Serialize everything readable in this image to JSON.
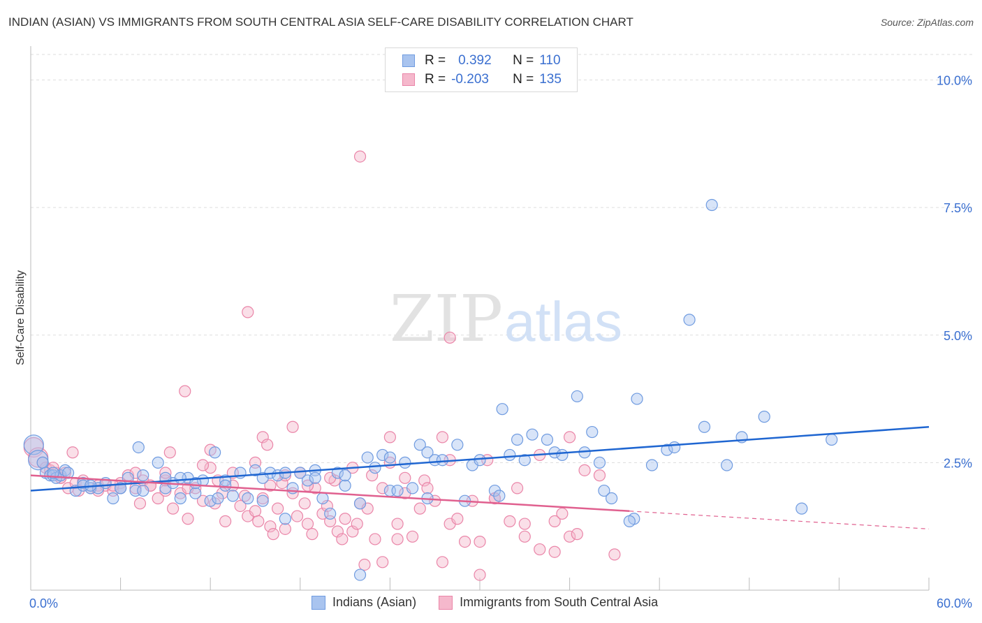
{
  "title": "INDIAN (ASIAN) VS IMMIGRANTS FROM SOUTH CENTRAL ASIA SELF-CARE DISABILITY CORRELATION CHART",
  "source": "Source: ZipAtlas.com",
  "watermark": {
    "zip": "ZIP",
    "atlas": "atlas"
  },
  "colors": {
    "blue_fill": "#a9c4ef",
    "blue_stroke": "#6f9be0",
    "blue_line": "#1f66d1",
    "pink_fill": "#f5b8cc",
    "pink_stroke": "#ea85a8",
    "pink_line": "#e0608f",
    "axis_text": "#3a6fd0",
    "grid": "#dddddd"
  },
  "legend": {
    "rows": [
      {
        "r_label": "R =",
        "r_value": "0.392",
        "n_label": "N =",
        "n_value": "110"
      },
      {
        "r_label": "R =",
        "r_value": "-0.203",
        "n_label": "N =",
        "n_value": "135"
      }
    ]
  },
  "bottom_legend": {
    "series1": "Indians (Asian)",
    "series2": "Immigrants from South Central Asia"
  },
  "chart_data": {
    "type": "scatter",
    "title": "INDIAN (ASIAN) VS IMMIGRANTS FROM SOUTH CENTRAL ASIA SELF-CARE DISABILITY CORRELATION CHART",
    "xlabel": "",
    "ylabel": "Self-Care Disability",
    "xlim": [
      0,
      60
    ],
    "ylim": [
      0,
      10.5
    ],
    "x_tick_labels": [
      "0.0%",
      "60.0%"
    ],
    "y_ticks": [
      2.5,
      5.0,
      7.5,
      10.0
    ],
    "y_tick_labels": [
      "2.5%",
      "5.0%",
      "7.5%",
      "10.0%"
    ],
    "series": [
      {
        "name": "Indians (Asian)",
        "r": 0.392,
        "n": 110,
        "trend": {
          "x0": 0,
          "y0": 1.95,
          "x1": 60,
          "y1": 3.2
        },
        "points": [
          [
            0.2,
            2.85
          ],
          [
            0.5,
            2.55
          ],
          [
            0.8,
            2.5
          ],
          [
            1.0,
            2.3
          ],
          [
            1.3,
            2.25
          ],
          [
            1.5,
            2.25
          ],
          [
            1.7,
            2.2
          ],
          [
            2.0,
            2.25
          ],
          [
            2.3,
            2.35
          ],
          [
            2.5,
            2.3
          ],
          [
            3.0,
            1.95
          ],
          [
            3.5,
            2.1
          ],
          [
            4.0,
            2.0
          ],
          [
            4.5,
            2.0
          ],
          [
            5.0,
            2.1
          ],
          [
            5.5,
            1.8
          ],
          [
            6.0,
            2.0
          ],
          [
            6.5,
            2.2
          ],
          [
            7.0,
            1.95
          ],
          [
            7.5,
            2.25
          ],
          [
            7.2,
            2.8
          ],
          [
            8.5,
            2.5
          ],
          [
            9.0,
            2.0
          ],
          [
            9.5,
            2.1
          ],
          [
            10.0,
            1.8
          ],
          [
            10.5,
            2.2
          ],
          [
            11.0,
            1.9
          ],
          [
            11.5,
            2.15
          ],
          [
            12.0,
            1.75
          ],
          [
            12.5,
            1.8
          ],
          [
            12.3,
            2.7
          ],
          [
            13.0,
            2.15
          ],
          [
            13.5,
            1.85
          ],
          [
            14.0,
            2.3
          ],
          [
            14.5,
            1.8
          ],
          [
            15.0,
            2.35
          ],
          [
            15.5,
            1.75
          ],
          [
            16.0,
            2.3
          ],
          [
            16.5,
            2.25
          ],
          [
            17.0,
            2.3
          ],
          [
            17.5,
            2.0
          ],
          [
            18.0,
            2.3
          ],
          [
            18.5,
            2.15
          ],
          [
            19.0,
            2.35
          ],
          [
            19.5,
            1.8
          ],
          [
            20.0,
            1.5
          ],
          [
            20.5,
            2.3
          ],
          [
            21.0,
            2.05
          ],
          [
            22.0,
            1.7
          ],
          [
            22.5,
            2.6
          ],
          [
            23.0,
            2.4
          ],
          [
            23.5,
            2.65
          ],
          [
            24.0,
            1.95
          ],
          [
            24.5,
            1.95
          ],
          [
            25.0,
            2.5
          ],
          [
            25.5,
            2.0
          ],
          [
            26.0,
            2.85
          ],
          [
            26.5,
            2.7
          ],
          [
            27.0,
            2.55
          ],
          [
            27.5,
            2.55
          ],
          [
            28.5,
            2.85
          ],
          [
            29.0,
            1.75
          ],
          [
            29.5,
            2.45
          ],
          [
            30.0,
            2.55
          ],
          [
            31.0,
            1.95
          ],
          [
            31.3,
            1.85
          ],
          [
            32.0,
            2.65
          ],
          [
            32.5,
            2.95
          ],
          [
            33.0,
            2.55
          ],
          [
            34.5,
            2.95
          ],
          [
            35.0,
            2.7
          ],
          [
            35.5,
            2.65
          ],
          [
            36.5,
            3.8
          ],
          [
            37.0,
            2.7
          ],
          [
            37.5,
            3.1
          ],
          [
            38.0,
            2.5
          ],
          [
            38.3,
            1.95
          ],
          [
            38.8,
            1.8
          ],
          [
            40.5,
            3.75
          ],
          [
            41.5,
            2.45
          ],
          [
            42.5,
            2.75
          ],
          [
            43.0,
            2.8
          ],
          [
            45.0,
            3.2
          ],
          [
            46.5,
            2.45
          ],
          [
            47.5,
            3.0
          ],
          [
            49.0,
            3.4
          ],
          [
            51.5,
            1.6
          ],
          [
            53.5,
            2.95
          ],
          [
            7.5,
            1.95
          ],
          [
            3.5,
            2.05
          ],
          [
            26.5,
            1.8
          ],
          [
            17.0,
            1.4
          ],
          [
            22.0,
            0.3
          ],
          [
            40.3,
            1.4
          ],
          [
            44.0,
            5.3
          ],
          [
            45.5,
            7.55
          ],
          [
            21.0,
            2.25
          ],
          [
            19.0,
            2.2
          ],
          [
            10.0,
            2.2
          ],
          [
            6.0,
            2.0
          ],
          [
            4.0,
            2.05
          ],
          [
            1.5,
            2.3
          ],
          [
            9.0,
            2.2
          ],
          [
            11.0,
            2.1
          ],
          [
            13.0,
            2.05
          ],
          [
            15.5,
            2.2
          ],
          [
            24.0,
            2.6
          ],
          [
            31.5,
            3.55
          ],
          [
            33.5,
            3.05
          ],
          [
            40.0,
            1.35
          ]
        ]
      },
      {
        "name": "Immigrants from South Central Asia",
        "r": -0.203,
        "n": 135,
        "trend": {
          "x0": 0,
          "y0": 2.25,
          "x1": 40,
          "y1": 1.55
        },
        "trend_dashed": {
          "x0": 40,
          "y0": 1.55,
          "x1": 60,
          "y1": 1.2
        },
        "points": [
          [
            0.2,
            2.8
          ],
          [
            0.5,
            2.6
          ],
          [
            0.8,
            2.5
          ],
          [
            1.0,
            2.4
          ],
          [
            1.3,
            2.35
          ],
          [
            1.7,
            2.3
          ],
          [
            2.0,
            2.2
          ],
          [
            2.3,
            2.3
          ],
          [
            2.5,
            2.0
          ],
          [
            2.8,
            2.7
          ],
          [
            3.0,
            2.1
          ],
          [
            3.5,
            2.15
          ],
          [
            4.0,
            2.0
          ],
          [
            4.5,
            2.05
          ],
          [
            5.0,
            2.05
          ],
          [
            5.5,
            1.95
          ],
          [
            6.0,
            2.1
          ],
          [
            6.5,
            2.25
          ],
          [
            7.0,
            2.0
          ],
          [
            7.3,
            1.7
          ],
          [
            7.5,
            2.15
          ],
          [
            8.0,
            2.05
          ],
          [
            8.5,
            1.8
          ],
          [
            9.0,
            2.15
          ],
          [
            9.3,
            2.7
          ],
          [
            9.5,
            1.6
          ],
          [
            10.0,
            1.9
          ],
          [
            10.3,
            3.9
          ],
          [
            10.5,
            1.4
          ],
          [
            11.0,
            2.0
          ],
          [
            11.5,
            1.75
          ],
          [
            12.0,
            2.4
          ],
          [
            12.3,
            1.7
          ],
          [
            12.8,
            1.9
          ],
          [
            13.0,
            1.35
          ],
          [
            13.5,
            2.05
          ],
          [
            14.0,
            1.65
          ],
          [
            14.3,
            1.85
          ],
          [
            14.5,
            1.45
          ],
          [
            15.0,
            1.55
          ],
          [
            15.2,
            1.35
          ],
          [
            15.5,
            1.8
          ],
          [
            16.0,
            1.25
          ],
          [
            16.2,
            1.1
          ],
          [
            16.5,
            1.6
          ],
          [
            16.8,
            2.1
          ],
          [
            17.0,
            1.2
          ],
          [
            17.5,
            1.9
          ],
          [
            17.8,
            1.45
          ],
          [
            18.0,
            2.3
          ],
          [
            18.3,
            1.7
          ],
          [
            18.5,
            1.3
          ],
          [
            18.8,
            1.1
          ],
          [
            19.0,
            2.0
          ],
          [
            19.5,
            1.5
          ],
          [
            19.8,
            1.65
          ],
          [
            20.0,
            1.35
          ],
          [
            20.3,
            2.15
          ],
          [
            20.5,
            1.15
          ],
          [
            20.8,
            1.0
          ],
          [
            21.0,
            1.4
          ],
          [
            21.5,
            1.15
          ],
          [
            21.8,
            1.3
          ],
          [
            22.0,
            1.7
          ],
          [
            22.3,
            0.5
          ],
          [
            22.5,
            1.6
          ],
          [
            22.8,
            2.25
          ],
          [
            23.0,
            1.0
          ],
          [
            23.5,
            0.55
          ],
          [
            24.0,
            2.5
          ],
          [
            24.5,
            1.3
          ],
          [
            25.0,
            1.9
          ],
          [
            25.5,
            1.05
          ],
          [
            26.0,
            1.6
          ],
          [
            26.3,
            2.15
          ],
          [
            27.0,
            1.75
          ],
          [
            27.5,
            0.55
          ],
          [
            28.0,
            1.3
          ],
          [
            28.5,
            1.4
          ],
          [
            29.0,
            0.95
          ],
          [
            29.5,
            1.75
          ],
          [
            30.0,
            0.95
          ],
          [
            31.0,
            1.8
          ],
          [
            32.0,
            1.35
          ],
          [
            33.0,
            1.05
          ],
          [
            34.0,
            0.8
          ],
          [
            35.0,
            1.35
          ],
          [
            35.5,
            1.5
          ],
          [
            36.0,
            1.05
          ],
          [
            36.5,
            1.1
          ],
          [
            37.0,
            2.35
          ],
          [
            38.0,
            2.25
          ],
          [
            39.0,
            0.7
          ],
          [
            22.0,
            8.5
          ],
          [
            14.5,
            5.45
          ],
          [
            28.0,
            4.95
          ],
          [
            3.2,
            1.95
          ],
          [
            6.0,
            2.0
          ],
          [
            8.0,
            2.05
          ],
          [
            9.0,
            1.95
          ],
          [
            10.5,
            2.0
          ],
          [
            12.5,
            2.15
          ],
          [
            13.5,
            2.3
          ],
          [
            15.0,
            2.5
          ],
          [
            16.0,
            2.05
          ],
          [
            17.0,
            2.25
          ],
          [
            18.5,
            2.05
          ],
          [
            20.0,
            2.2
          ],
          [
            21.5,
            2.4
          ],
          [
            23.5,
            2.0
          ],
          [
            25.0,
            2.2
          ],
          [
            26.5,
            2.0
          ],
          [
            28.0,
            2.55
          ],
          [
            30.5,
            2.55
          ],
          [
            32.5,
            2.0
          ],
          [
            34.0,
            2.65
          ],
          [
            36.0,
            3.0
          ],
          [
            27.5,
            3.0
          ],
          [
            24.0,
            3.0
          ],
          [
            17.5,
            3.2
          ],
          [
            15.5,
            3.0
          ],
          [
            15.8,
            2.85
          ],
          [
            12.0,
            2.75
          ],
          [
            11.5,
            2.45
          ],
          [
            9.0,
            2.3
          ],
          [
            7.0,
            2.3
          ],
          [
            5.5,
            2.05
          ],
          [
            4.5,
            1.95
          ],
          [
            2.0,
            2.2
          ],
          [
            1.5,
            2.4
          ],
          [
            31.0,
            1.8
          ],
          [
            33.0,
            1.3
          ],
          [
            35.0,
            0.75
          ],
          [
            30.0,
            0.3
          ],
          [
            24.5,
            1.0
          ]
        ]
      }
    ]
  }
}
